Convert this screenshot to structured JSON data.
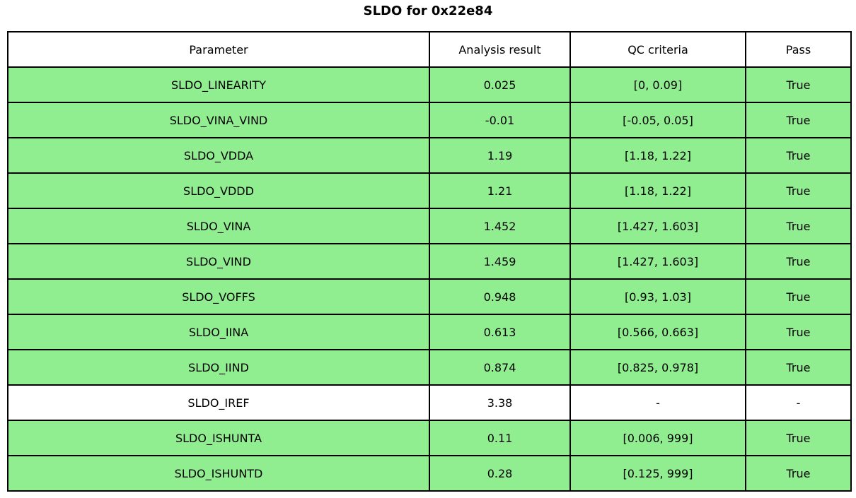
{
  "title": "SLDO for 0x22e84",
  "colors": {
    "row_green": "#90EE90",
    "row_white": "#FFFFFF",
    "border": "#000000",
    "text": "#000000",
    "background": "#FFFFFF"
  },
  "chart_data": {
    "type": "table",
    "title": "SLDO for 0x22e84",
    "columns": [
      "Parameter",
      "Analysis result",
      "QC criteria",
      "Pass"
    ],
    "rows": [
      {
        "parameter": "SLDO_LINEARITY",
        "analysis_result": "0.025",
        "qc_criteria": "[0, 0.09]",
        "pass": "True",
        "highlighted": true
      },
      {
        "parameter": "SLDO_VINA_VIND",
        "analysis_result": "-0.01",
        "qc_criteria": "[-0.05, 0.05]",
        "pass": "True",
        "highlighted": true
      },
      {
        "parameter": "SLDO_VDDA",
        "analysis_result": "1.19",
        "qc_criteria": "[1.18, 1.22]",
        "pass": "True",
        "highlighted": true
      },
      {
        "parameter": "SLDO_VDDD",
        "analysis_result": "1.21",
        "qc_criteria": "[1.18, 1.22]",
        "pass": "True",
        "highlighted": true
      },
      {
        "parameter": "SLDO_VINA",
        "analysis_result": "1.452",
        "qc_criteria": "[1.427, 1.603]",
        "pass": "True",
        "highlighted": true
      },
      {
        "parameter": "SLDO_VIND",
        "analysis_result": "1.459",
        "qc_criteria": "[1.427, 1.603]",
        "pass": "True",
        "highlighted": true
      },
      {
        "parameter": "SLDO_VOFFS",
        "analysis_result": "0.948",
        "qc_criteria": "[0.93, 1.03]",
        "pass": "True",
        "highlighted": true
      },
      {
        "parameter": "SLDO_IINA",
        "analysis_result": "0.613",
        "qc_criteria": "[0.566, 0.663]",
        "pass": "True",
        "highlighted": true
      },
      {
        "parameter": "SLDO_IIND",
        "analysis_result": "0.874",
        "qc_criteria": "[0.825, 0.978]",
        "pass": "True",
        "highlighted": true
      },
      {
        "parameter": "SLDO_IREF",
        "analysis_result": "3.38",
        "qc_criteria": "-",
        "pass": "-",
        "highlighted": false
      },
      {
        "parameter": "SLDO_ISHUNTA",
        "analysis_result": "0.11",
        "qc_criteria": "[0.006, 999]",
        "pass": "True",
        "highlighted": true
      },
      {
        "parameter": "SLDO_ISHUNTD",
        "analysis_result": "0.28",
        "qc_criteria": "[0.125, 999]",
        "pass": "True",
        "highlighted": true
      }
    ],
    "legend_position": "none",
    "grid": true
  }
}
